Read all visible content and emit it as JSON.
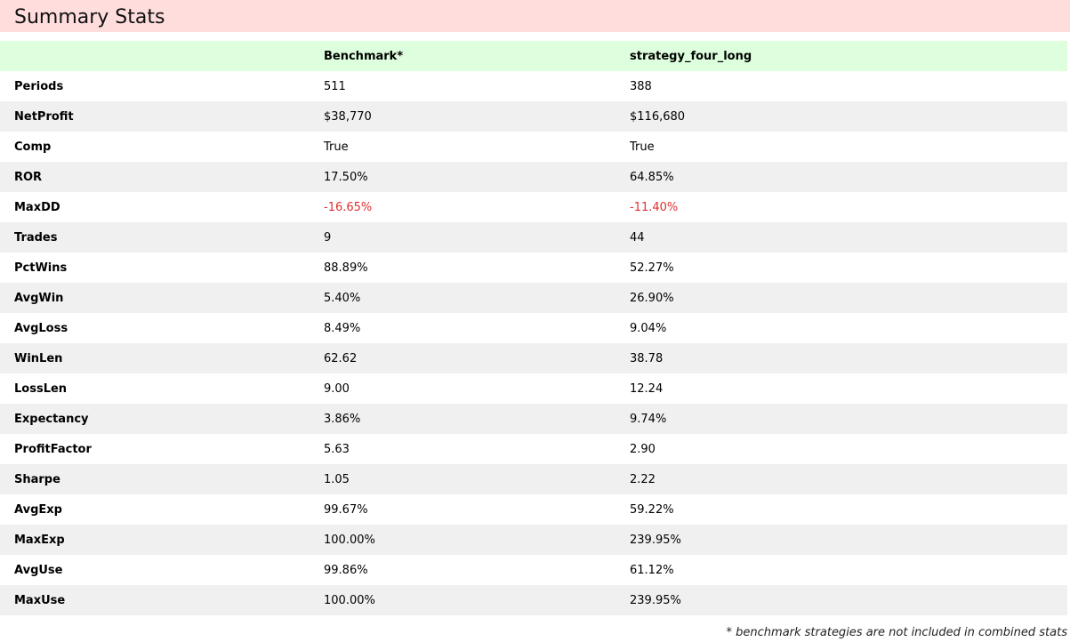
{
  "title": "Summary Stats",
  "columns": [
    "",
    "Benchmark*",
    "strategy_four_long"
  ],
  "rows": [
    {
      "metric": "Periods",
      "benchmark": "511",
      "strategy": "388"
    },
    {
      "metric": "NetProfit",
      "benchmark": "$38,770",
      "strategy": "$116,680"
    },
    {
      "metric": "Comp",
      "benchmark": "True",
      "strategy": "True"
    },
    {
      "metric": "ROR",
      "benchmark": "17.50%",
      "strategy": "64.85%"
    },
    {
      "metric": "MaxDD",
      "benchmark": "-16.65%",
      "strategy": "-11.40%"
    },
    {
      "metric": "Trades",
      "benchmark": "9",
      "strategy": "44"
    },
    {
      "metric": "PctWins",
      "benchmark": "88.89%",
      "strategy": "52.27%"
    },
    {
      "metric": "AvgWin",
      "benchmark": "5.40%",
      "strategy": "26.90%"
    },
    {
      "metric": "AvgLoss",
      "benchmark": "8.49%",
      "strategy": "9.04%"
    },
    {
      "metric": "WinLen",
      "benchmark": "62.62",
      "strategy": "38.78"
    },
    {
      "metric": "LossLen",
      "benchmark": "9.00",
      "strategy": "12.24"
    },
    {
      "metric": "Expectancy",
      "benchmark": "3.86%",
      "strategy": "9.74%"
    },
    {
      "metric": "ProfitFactor",
      "benchmark": "5.63",
      "strategy": "2.90"
    },
    {
      "metric": "Sharpe",
      "benchmark": "1.05",
      "strategy": "2.22"
    },
    {
      "metric": "AvgExp",
      "benchmark": "99.67%",
      "strategy": "59.22%"
    },
    {
      "metric": "MaxExp",
      "benchmark": "100.00%",
      "strategy": "239.95%"
    },
    {
      "metric": "AvgUse",
      "benchmark": "99.86%",
      "strategy": "61.12%"
    },
    {
      "metric": "MaxUse",
      "benchmark": "100.00%",
      "strategy": "239.95%"
    }
  ],
  "footnote": "* benchmark strategies are not included in combined stats",
  "colors": {
    "title_bg": "#ffdddd",
    "header_bg": "#ddffdd",
    "stripe_bg": "#f0f0f0",
    "negative": "#e03030"
  }
}
